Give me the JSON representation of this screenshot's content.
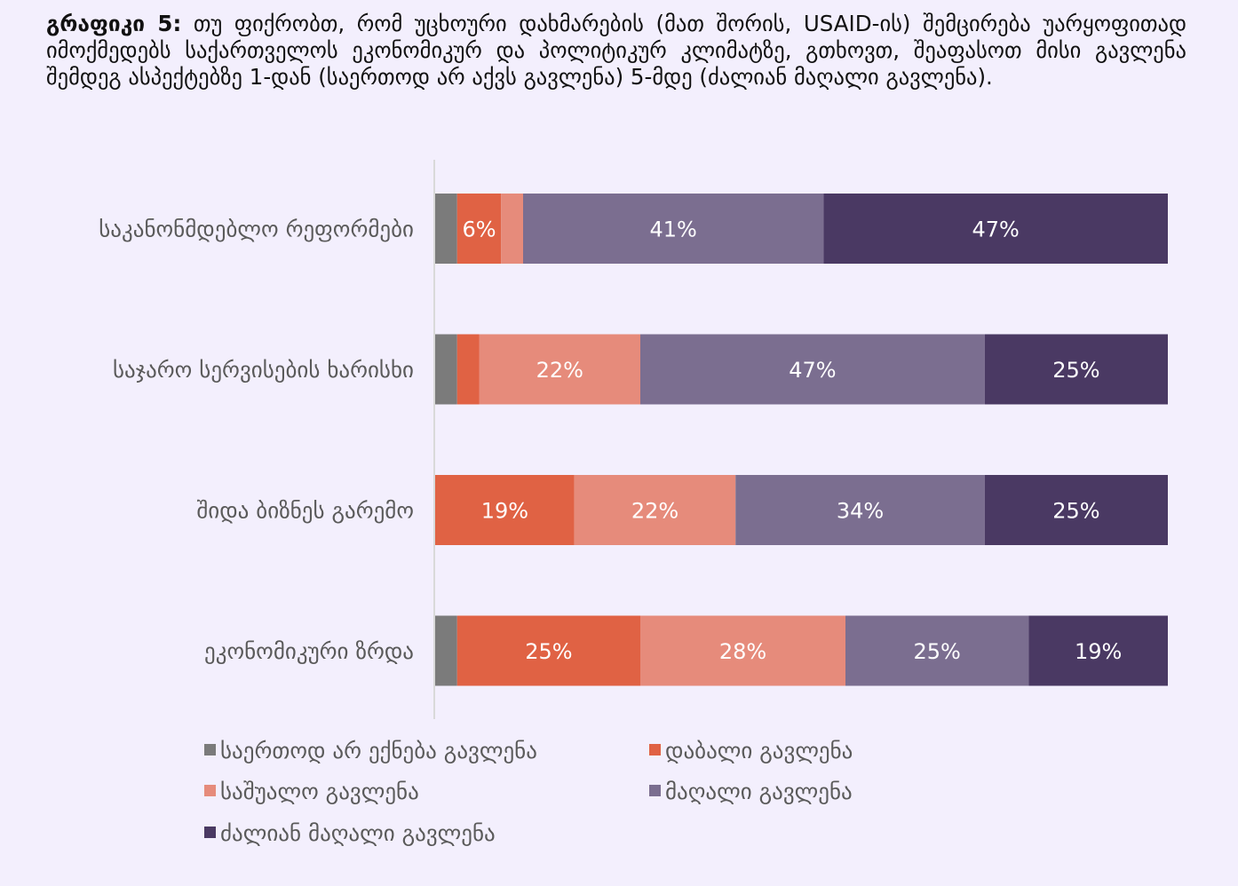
{
  "title": {
    "prefix": "გრაფიკი 5:",
    "text": "თუ ფიქრობთ, რომ უცხოური დახმარების (მათ შორის, USAID-ის) შემცირება უარყოფითად იმოქმედებს საქართველოს ეკონომიკურ და პოლიტიკურ კლიმატზე, გთხოვთ, შეაფასოთ მისი გავლენა შემდეგ ასპექტებზე 1-დან (საერთოდ არ აქვს გავლენა) 5-მდე (ძალიან მაღალი გავლენა)."
  },
  "chart_data": {
    "type": "bar",
    "orientation": "horizontal",
    "stacked": true,
    "normalized": true,
    "categories": [
      "საკანონმდებლო რეფორმები",
      "საჯარო სერვისების ხარისხი",
      "შიდა ბიზნეს გარემო",
      "ეკონომიკური ზრდა"
    ],
    "series": [
      {
        "name": "საერთოდ არ ექნება გავლენა",
        "color": "#7b7b7b",
        "values": [
          3,
          3,
          0,
          3
        ],
        "labels": [
          "",
          "",
          "",
          ""
        ]
      },
      {
        "name": "დაბალი გავლენა",
        "color": "#e06244",
        "values": [
          6,
          3,
          19,
          25
        ],
        "labels": [
          "6%",
          "",
          "19%",
          "25%"
        ]
      },
      {
        "name": "საშუალო გავლენა",
        "color": "#e68b7b",
        "values": [
          3,
          22,
          22,
          28
        ],
        "labels": [
          "",
          "22%",
          "22%",
          "28%"
        ]
      },
      {
        "name": "მაღალი გავლენა",
        "color": "#7b6e90",
        "values": [
          41,
          47,
          34,
          25
        ],
        "labels": [
          "41%",
          "47%",
          "34%",
          "25%"
        ]
      },
      {
        "name": "ძალიან მაღალი გავლენა",
        "color": "#4a3963",
        "values": [
          47,
          25,
          25,
          19
        ],
        "labels": [
          "47%",
          "25%",
          "25%",
          "19%"
        ]
      }
    ],
    "legend_position": "bottom",
    "grid": false
  }
}
